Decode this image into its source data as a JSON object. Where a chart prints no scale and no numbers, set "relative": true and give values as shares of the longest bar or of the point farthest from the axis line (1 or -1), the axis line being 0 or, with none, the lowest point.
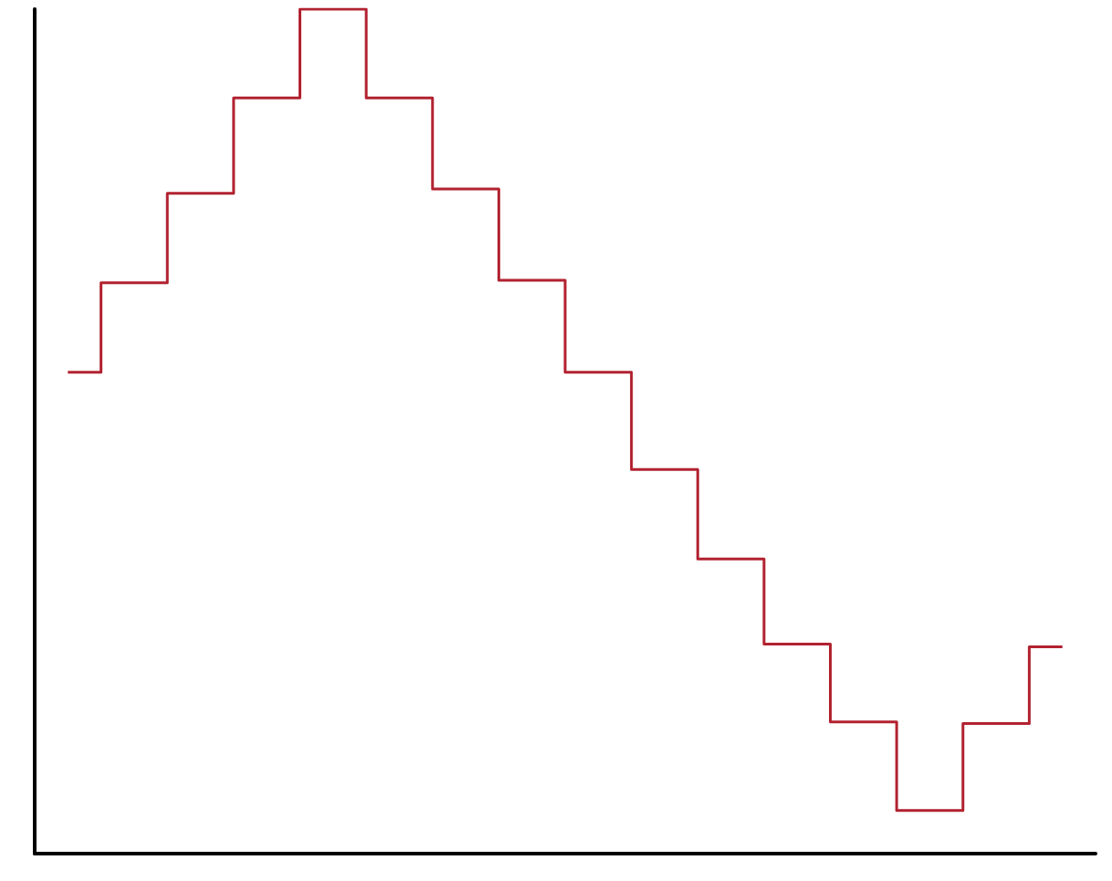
{
  "chart_data": {
    "type": "step",
    "relative": true,
    "categories": [
      null,
      null,
      null,
      null,
      null,
      null,
      null,
      null,
      null,
      null,
      null,
      null,
      null,
      null,
      null,
      null
    ],
    "series": [
      {
        "color": "#b22230",
        "values": [
          0.57,
          0.676,
          0.782,
          0.895,
          1,
          0.895,
          0.787,
          0.679,
          0.57,
          0.455,
          0.349,
          0.248,
          0.156,
          0.051,
          0.154,
          0.245
        ]
      }
    ],
    "grid": false,
    "marker": "none",
    "line_style": "solid"
  }
}
